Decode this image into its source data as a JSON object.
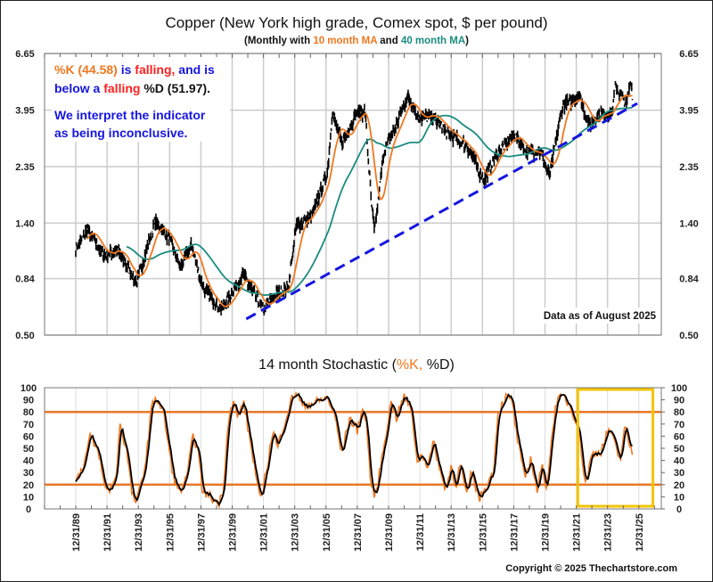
{
  "colors": {
    "price": "#000000",
    "ma10": "#F07820",
    "ma40": "#1A8C80",
    "trend": "#1515E0",
    "k": "#F07820",
    "d": "#000000",
    "band": "#E8782A",
    "highlight": "#F5C400",
    "red": "#FF2020",
    "blue": "#1515E0",
    "orange": "#F07820"
  },
  "chart_data": [
    {
      "type": "line",
      "title": "Copper (New York high grade, Comex spot, $ per pound)",
      "subtitle": {
        "prefix": "(Monthly with ",
        "ma10": "10 month MA",
        "mid": " and ",
        "ma40": "40 month MA",
        "suffix": ")"
      },
      "y_scale": "log",
      "ylim": [
        0.5,
        6.65
      ],
      "y_ticks": [
        "6.65",
        "3.95",
        "2.35",
        "1.40",
        "0.84",
        "0.50"
      ],
      "xlim": [
        1988.0,
        2027.4
      ],
      "grid": true,
      "series": [
        {
          "name": "Copper monthly price",
          "x": [
            1990.0,
            1990.75,
            1991.8,
            1992.6,
            1993.9,
            1995.1,
            1996.0,
            1996.7,
            1997.4,
            1998.1,
            1999.3,
            2000.7,
            2002.0,
            2002.8,
            2003.6,
            2004.1,
            2005.1,
            2006.1,
            2006.4,
            2007.0,
            2007.8,
            2008.1,
            2008.5,
            2008.9,
            2009.1,
            2009.7,
            2010.4,
            2011.2,
            2011.9,
            2012.9,
            2013.8,
            2015.0,
            2016.1,
            2016.9,
            2018.0,
            2018.8,
            2019.7,
            2020.3,
            2021.1,
            2022.2,
            2022.8,
            2023.5,
            2024.3,
            2024.5,
            2025.2,
            2025.5,
            2025.6
          ],
          "y": [
            1.1,
            1.32,
            1.04,
            1.1,
            0.81,
            1.44,
            1.2,
            0.93,
            1.15,
            0.78,
            0.63,
            0.87,
            0.63,
            0.73,
            0.78,
            1.37,
            1.5,
            2.24,
            3.84,
            2.93,
            3.7,
            3.84,
            3.9,
            1.69,
            1.29,
            2.7,
            3.35,
            4.49,
            3.7,
            3.7,
            3.17,
            2.86,
            2.06,
            2.64,
            3.17,
            2.7,
            2.7,
            2.16,
            4.07,
            4.53,
            3.45,
            3.84,
            3.84,
            4.91,
            4.14,
            5.2,
            4.4
          ]
        },
        {
          "name": "10 month MA",
          "window": 10
        },
        {
          "name": "40 month MA",
          "window": 40
        },
        {
          "name": "Trendline",
          "x": [
            2000.9,
            2025.9
          ],
          "y": [
            0.58,
            4.2
          ]
        }
      ],
      "annotations": {
        "line1": {
          "k": "%K (44.58)",
          "is": " is ",
          "falling": "falling,",
          "rest": " and is"
        },
        "line2": {
          "below": "below a ",
          "falling": "falling",
          "d": " %D (51.97)."
        },
        "line3": "We interpret the indicator",
        "line4": "as being inconclusive.",
        "data_as_of": "Data as of August 2025"
      }
    },
    {
      "type": "line",
      "title": {
        "prefix": "14 month Stochastic (",
        "k": "%K,",
        "d": " %D)"
      },
      "ylim": [
        0,
        100
      ],
      "y_ticks": [
        "100",
        "90",
        "80",
        "70",
        "60",
        "50",
        "40",
        "30",
        "20",
        "10",
        "0"
      ],
      "reference_lines": [
        80,
        20
      ],
      "highlight_range_x": [
        2022.1,
        2026.9
      ],
      "x_tick_labels": [
        "12/31/89",
        "12/31/91",
        "12/31/93",
        "12/31/95",
        "12/31/97",
        "12/31/99",
        "12/31/01",
        "12/31/03",
        "12/31/05",
        "12/31/07",
        "12/31/09",
        "12/31/11",
        "12/31/13",
        "12/31/15",
        "12/31/17",
        "12/31/19",
        "12/31/21",
        "12/31/23",
        "12/31/25"
      ],
      "series": [
        {
          "name": "%K",
          "x": [
            1990.0,
            1990.6,
            1990.9,
            1991.5,
            1991.8,
            1992.1,
            1992.6,
            1992.8,
            1993.3,
            1993.6,
            1993.9,
            1994.5,
            1994.8,
            1995.1,
            1995.6,
            1996.2,
            1996.6,
            1997.1,
            1997.5,
            1997.8,
            1998.1,
            1998.8,
            1999.1,
            1999.4,
            1999.8,
            2000.1,
            2000.4,
            2000.7,
            2001.3,
            2001.8,
            2002.3,
            2002.6,
            2002.9,
            2003.2,
            2003.8,
            2004.1,
            2004.5,
            2005.4,
            2006.1,
            2006.6,
            2007.0,
            2007.5,
            2008.0,
            2008.3,
            2008.6,
            2008.9,
            2009.2,
            2009.8,
            2010.2,
            2010.5,
            2011.0,
            2011.5,
            2011.8,
            2012.2,
            2012.5,
            2012.9,
            2013.4,
            2013.7,
            2014.0,
            2014.3,
            2014.6,
            2015.0,
            2015.3,
            2015.8,
            2016.3,
            2016.7,
            2017.0,
            2017.5,
            2017.9,
            2018.2,
            2018.7,
            2019.1,
            2019.5,
            2019.8,
            2020.1,
            2020.7,
            2021.2,
            2021.6,
            2022.1,
            2022.6,
            2023.0,
            2023.6,
            2024.1,
            2024.8,
            2025.1,
            2025.6
          ],
          "y": [
            22,
            40,
            60,
            45,
            20,
            15,
            25,
            72,
            45,
            12,
            5,
            40,
            80,
            93,
            80,
            30,
            13,
            25,
            60,
            50,
            15,
            8,
            4,
            12,
            80,
            87,
            75,
            90,
            45,
            5,
            40,
            65,
            50,
            65,
            90,
            97,
            85,
            88,
            92,
            75,
            45,
            75,
            65,
            83,
            70,
            15,
            12,
            60,
            90,
            75,
            93,
            80,
            40,
            45,
            35,
            55,
            25,
            17,
            35,
            20,
            37,
            10,
            32,
            8,
            20,
            30,
            80,
            92,
            90,
            60,
            25,
            42,
            15,
            35,
            18,
            88,
            93,
            85,
            70,
            20,
            45,
            48,
            67,
            40,
            67,
            44.58
          ]
        },
        {
          "name": "%D",
          "smoothing": 3,
          "last": 51.97
        }
      ]
    }
  ],
  "copyright": "Copyright © 2025 Thechartstore.com"
}
